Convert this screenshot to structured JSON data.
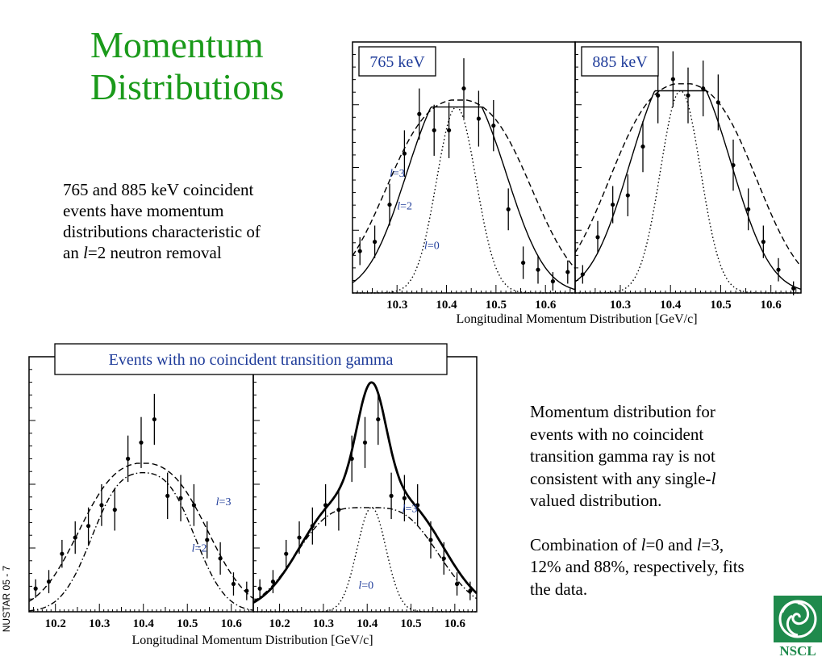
{
  "title": [
    "Momentum",
    "Distributions"
  ],
  "text1": [
    "765 and 885 keV coincident",
    "events have momentum",
    "distributions characteristic of",
    "an ",
    "l",
    "=2 neutron removal"
  ],
  "text2": {
    "p1": [
      "Momentum distribution for",
      "events with no coincident",
      "transition gamma ray is not",
      "consistent with any single-",
      "l",
      "valued distribution."
    ],
    "p2": [
      "Combination of ",
      "l",
      "=0 and ",
      "l",
      "=3,",
      "12% and 88%, respectively, fits",
      "the data."
    ]
  },
  "side_label": "NUSTAR 05 - 7",
  "logo_text": "NSCL",
  "colors": {
    "title": "#1a9a1a",
    "label_blue": "#1f3c9a",
    "logo_green": "#1f8a4c"
  },
  "chart_data": [
    {
      "type": "scatter",
      "panel_label": "765 keV",
      "xlabel": "Longitudinal Momentum Distribution [GeV/c]",
      "xlim": [
        10.21,
        10.66
      ],
      "ylim": [
        0,
        1.08
      ],
      "x_ticks": [
        "10.3",
        "10.4",
        "10.5",
        "10.6"
      ],
      "points": [
        {
          "x": 10.225,
          "y": 0.18,
          "err": 0.06
        },
        {
          "x": 10.255,
          "y": 0.22,
          "err": 0.07
        },
        {
          "x": 10.285,
          "y": 0.38,
          "err": 0.09
        },
        {
          "x": 10.315,
          "y": 0.6,
          "err": 0.1
        },
        {
          "x": 10.345,
          "y": 0.77,
          "err": 0.11
        },
        {
          "x": 10.375,
          "y": 0.7,
          "err": 0.11
        },
        {
          "x": 10.405,
          "y": 0.7,
          "err": 0.12
        },
        {
          "x": 10.435,
          "y": 0.88,
          "err": 0.13
        },
        {
          "x": 10.465,
          "y": 0.75,
          "err": 0.12
        },
        {
          "x": 10.495,
          "y": 0.72,
          "err": 0.11
        },
        {
          "x": 10.525,
          "y": 0.36,
          "err": 0.09
        },
        {
          "x": 10.555,
          "y": 0.13,
          "err": 0.07
        },
        {
          "x": 10.585,
          "y": 0.1,
          "err": 0.06
        },
        {
          "x": 10.615,
          "y": 0.05,
          "err": 0.04
        },
        {
          "x": 10.645,
          "y": 0.09,
          "err": 0.05
        }
      ],
      "curves": [
        {
          "label": "l=3",
          "style": "dashed",
          "shape": "bimodal",
          "center": 10.425,
          "sep": 0.075,
          "width": 0.085,
          "peak": 0.83
        },
        {
          "label": "l=2",
          "style": "solid",
          "shape": "bimodal",
          "center": 10.42,
          "sep": 0.05,
          "width": 0.07,
          "peak": 0.8
        },
        {
          "label": "l=0",
          "style": "dotted",
          "shape": "gauss",
          "center": 10.42,
          "sep": 0,
          "width": 0.04,
          "peak": 0.8
        }
      ],
      "annotations": [
        {
          "text": "l=3",
          "x": 10.285,
          "y": 0.5
        },
        {
          "text": "l=2",
          "x": 10.3,
          "y": 0.36
        },
        {
          "text": "l=0",
          "x": 10.355,
          "y": 0.19
        }
      ]
    },
    {
      "type": "scatter",
      "panel_label": "885 keV",
      "xlabel": "Longitudinal Momentum Distribution [GeV/c]",
      "xlim": [
        10.21,
        10.66
      ],
      "ylim": [
        0,
        1.08
      ],
      "x_ticks": [
        "10.3",
        "10.4",
        "10.5",
        "10.6"
      ],
      "points": [
        {
          "x": 10.225,
          "y": 0.08,
          "err": 0.04
        },
        {
          "x": 10.255,
          "y": 0.24,
          "err": 0.07
        },
        {
          "x": 10.285,
          "y": 0.38,
          "err": 0.08
        },
        {
          "x": 10.315,
          "y": 0.42,
          "err": 0.09
        },
        {
          "x": 10.345,
          "y": 0.63,
          "err": 0.11
        },
        {
          "x": 10.375,
          "y": 0.85,
          "err": 0.12
        },
        {
          "x": 10.405,
          "y": 0.92,
          "err": 0.12
        },
        {
          "x": 10.435,
          "y": 0.85,
          "err": 0.12
        },
        {
          "x": 10.465,
          "y": 0.88,
          "err": 0.12
        },
        {
          "x": 10.495,
          "y": 0.82,
          "err": 0.12
        },
        {
          "x": 10.525,
          "y": 0.55,
          "err": 0.11
        },
        {
          "x": 10.555,
          "y": 0.36,
          "err": 0.09
        },
        {
          "x": 10.585,
          "y": 0.22,
          "err": 0.07
        },
        {
          "x": 10.615,
          "y": 0.1,
          "err": 0.05
        },
        {
          "x": 10.645,
          "y": 0.02,
          "err": 0.03
        }
      ],
      "curves": [
        {
          "label": "l=3",
          "style": "dashed",
          "shape": "bimodal",
          "center": 10.425,
          "sep": 0.075,
          "width": 0.085,
          "peak": 0.9
        },
        {
          "label": "l=2",
          "style": "solid",
          "shape": "bimodal",
          "center": 10.42,
          "sep": 0.05,
          "width": 0.07,
          "peak": 0.87
        },
        {
          "label": "l=0",
          "style": "dotted",
          "shape": "gauss",
          "center": 10.42,
          "sep": 0,
          "width": 0.04,
          "peak": 0.87
        }
      ]
    },
    {
      "type": "scatter",
      "banner": "Events with no coincident transition gamma",
      "xlabel": "Longitudinal Momentum Distribution [GeV/c]",
      "xlim": [
        10.14,
        10.65
      ],
      "ylim": [
        0,
        1.1
      ],
      "x_ticks": [
        "10.2",
        "10.3",
        "10.4",
        "10.5",
        "10.6"
      ],
      "points": [
        {
          "x": 10.155,
          "y": 0.1,
          "err": 0.04
        },
        {
          "x": 10.185,
          "y": 0.13,
          "err": 0.05
        },
        {
          "x": 10.215,
          "y": 0.25,
          "err": 0.06
        },
        {
          "x": 10.245,
          "y": 0.32,
          "err": 0.07
        },
        {
          "x": 10.275,
          "y": 0.37,
          "err": 0.08
        },
        {
          "x": 10.305,
          "y": 0.46,
          "err": 0.09
        },
        {
          "x": 10.335,
          "y": 0.44,
          "err": 0.09
        },
        {
          "x": 10.365,
          "y": 0.66,
          "err": 0.1
        },
        {
          "x": 10.395,
          "y": 0.73,
          "err": 0.11
        },
        {
          "x": 10.425,
          "y": 0.83,
          "err": 0.11
        },
        {
          "x": 10.455,
          "y": 0.5,
          "err": 0.1
        },
        {
          "x": 10.485,
          "y": 0.49,
          "err": 0.1
        },
        {
          "x": 10.515,
          "y": 0.46,
          "err": 0.09
        },
        {
          "x": 10.545,
          "y": 0.31,
          "err": 0.08
        },
        {
          "x": 10.575,
          "y": 0.23,
          "err": 0.07
        },
        {
          "x": 10.605,
          "y": 0.12,
          "err": 0.05
        },
        {
          "x": 10.635,
          "y": 0.09,
          "err": 0.04
        }
      ],
      "curves": [
        {
          "label": "l=3",
          "style": "dashed",
          "shape": "bimodal",
          "center": 10.4,
          "sep": 0.075,
          "width": 0.085,
          "peak": 0.64
        },
        {
          "label": "l=2",
          "style": "dashdot",
          "shape": "bimodal",
          "center": 10.4,
          "sep": 0.06,
          "width": 0.065,
          "peak": 0.62
        }
      ],
      "annotations": [
        {
          "text": "l=3",
          "x": 10.565,
          "y": 0.46
        },
        {
          "text": "l=2",
          "x": 10.51,
          "y": 0.26
        }
      ]
    },
    {
      "type": "scatter",
      "xlabel": "Longitudinal Momentum Distribution [GeV/c]",
      "xlim": [
        10.14,
        10.65
      ],
      "ylim": [
        0,
        1.1
      ],
      "x_ticks": [
        "10.2",
        "10.3",
        "10.4",
        "10.5",
        "10.6"
      ],
      "points": [
        {
          "x": 10.155,
          "y": 0.1,
          "err": 0.04
        },
        {
          "x": 10.185,
          "y": 0.13,
          "err": 0.05
        },
        {
          "x": 10.215,
          "y": 0.25,
          "err": 0.06
        },
        {
          "x": 10.245,
          "y": 0.32,
          "err": 0.07
        },
        {
          "x": 10.275,
          "y": 0.37,
          "err": 0.08
        },
        {
          "x": 10.305,
          "y": 0.46,
          "err": 0.09
        },
        {
          "x": 10.335,
          "y": 0.44,
          "err": 0.09
        },
        {
          "x": 10.365,
          "y": 0.66,
          "err": 0.1
        },
        {
          "x": 10.395,
          "y": 0.73,
          "err": 0.11
        },
        {
          "x": 10.425,
          "y": 0.83,
          "err": 0.11
        },
        {
          "x": 10.455,
          "y": 0.5,
          "err": 0.1
        },
        {
          "x": 10.485,
          "y": 0.49,
          "err": 0.1
        },
        {
          "x": 10.515,
          "y": 0.46,
          "err": 0.09
        },
        {
          "x": 10.545,
          "y": 0.31,
          "err": 0.08
        },
        {
          "x": 10.575,
          "y": 0.23,
          "err": 0.07
        },
        {
          "x": 10.605,
          "y": 0.12,
          "err": 0.05
        },
        {
          "x": 10.635,
          "y": 0.09,
          "err": 0.04
        }
      ],
      "curves": [
        {
          "label": "l=3",
          "style": "dashdot",
          "shape": "bimodal",
          "center": 10.4,
          "sep": 0.085,
          "width": 0.085,
          "peak": 0.5
        },
        {
          "label": "l=0",
          "style": "dotted",
          "shape": "gauss",
          "center": 10.41,
          "sep": 0,
          "width": 0.033,
          "peak": 0.45
        },
        {
          "label": "sum",
          "style": "thick",
          "shape": "sum",
          "center": 10.41,
          "sep": 0.085,
          "width": 0.085,
          "peak": 0.5
        }
      ],
      "annotations": [
        {
          "text": "l=3",
          "x": 10.48,
          "y": 0.43
        },
        {
          "text": "l=0",
          "x": 10.38,
          "y": 0.1
        }
      ]
    }
  ]
}
